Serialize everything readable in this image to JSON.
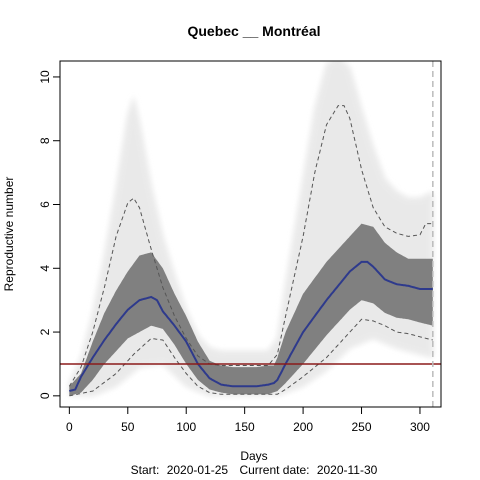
{
  "chart_data": {
    "type": "area",
    "title": "Quebec __ Montréal",
    "xlabel": "Days",
    "ylabel": "Reproductive number",
    "xlim": [
      -8,
      318
    ],
    "ylim": [
      -0.35,
      10.5
    ],
    "x_ticks": [
      0,
      50,
      100,
      150,
      200,
      250,
      300
    ],
    "y_ticks": [
      0,
      2,
      4,
      6,
      8,
      10
    ],
    "start_label": "Start:",
    "start_date": "2020-01-25",
    "current_label": "Current date:",
    "current_date": "2020-11-30",
    "reference_line": {
      "y": 1,
      "color": "#8b1a1a"
    },
    "current_day_marker": {
      "x": 311,
      "color": "#bbbbbb"
    },
    "colors": {
      "median": "#2e3a8c",
      "band_core": "#808080",
      "band_cloud": "#e6e6e6",
      "band_haze": "#f3f3f3",
      "quantile": "#555555"
    },
    "series": [
      {
        "role": "median",
        "x": [
          0,
          5,
          10,
          20,
          30,
          40,
          50,
          60,
          70,
          75,
          80,
          90,
          100,
          110,
          120,
          130,
          140,
          150,
          160,
          170,
          175,
          178,
          185,
          200,
          220,
          240,
          250,
          255,
          260,
          270,
          280,
          290,
          300,
          311
        ],
        "y": [
          0.15,
          0.2,
          0.6,
          1.2,
          1.75,
          2.25,
          2.7,
          3.0,
          3.1,
          3.0,
          2.65,
          2.2,
          1.7,
          1.0,
          0.55,
          0.35,
          0.3,
          0.3,
          0.3,
          0.35,
          0.4,
          0.5,
          1.0,
          2.0,
          3.0,
          3.9,
          4.2,
          4.2,
          4.05,
          3.65,
          3.5,
          3.45,
          3.35,
          3.35
        ]
      },
      {
        "role": "upper-quantile",
        "x": [
          0,
          10,
          20,
          30,
          40,
          50,
          55,
          60,
          70,
          80,
          90,
          100,
          110,
          120,
          130,
          140,
          150,
          160,
          170,
          178,
          185,
          200,
          210,
          220,
          230,
          235,
          240,
          250,
          260,
          270,
          280,
          290,
          300,
          305,
          311
        ],
        "y": [
          0.3,
          0.9,
          2.0,
          3.4,
          5.0,
          6.05,
          6.2,
          5.9,
          4.6,
          3.4,
          2.5,
          1.8,
          1.25,
          1.0,
          0.95,
          0.95,
          0.95,
          0.95,
          0.95,
          1.3,
          2.5,
          5.0,
          7.0,
          8.5,
          9.1,
          9.1,
          8.7,
          7.1,
          5.9,
          5.3,
          5.1,
          5.0,
          5.05,
          5.4,
          5.4
        ]
      },
      {
        "role": "lower-quantile",
        "x": [
          0,
          20,
          40,
          55,
          70,
          80,
          90,
          100,
          110,
          120,
          130,
          140,
          150,
          160,
          170,
          178,
          185,
          200,
          220,
          240,
          250,
          260,
          270,
          280,
          290,
          300,
          311
        ],
        "y": [
          0,
          0.15,
          0.7,
          1.3,
          1.8,
          1.75,
          1.2,
          0.7,
          0.3,
          0.1,
          0.05,
          0.05,
          0.05,
          0.05,
          0.05,
          0.05,
          0.2,
          0.6,
          1.2,
          2.0,
          2.4,
          2.35,
          2.2,
          2.0,
          1.95,
          1.85,
          1.75
        ]
      },
      {
        "role": "band-core-upper",
        "x": [
          0,
          10,
          20,
          30,
          40,
          50,
          60,
          70,
          80,
          90,
          100,
          110,
          120,
          130,
          140,
          150,
          160,
          170,
          175,
          178,
          185,
          200,
          220,
          240,
          250,
          260,
          270,
          280,
          290,
          300,
          311
        ],
        "y": [
          0.3,
          0.7,
          1.7,
          2.6,
          3.3,
          3.9,
          4.4,
          4.5,
          4.0,
          3.2,
          2.5,
          1.7,
          1.1,
          0.95,
          0.9,
          0.9,
          0.9,
          0.95,
          0.95,
          1.2,
          2.0,
          3.2,
          4.2,
          5.0,
          5.4,
          5.3,
          4.8,
          4.5,
          4.3,
          4.3,
          4.3
        ]
      },
      {
        "role": "band-core-lower",
        "x": [
          0,
          10,
          20,
          30,
          40,
          50,
          60,
          70,
          80,
          90,
          100,
          110,
          120,
          130,
          140,
          150,
          160,
          170,
          178,
          185,
          200,
          220,
          240,
          250,
          260,
          270,
          280,
          290,
          300,
          311
        ],
        "y": [
          0,
          0.1,
          0.5,
          1.0,
          1.4,
          1.8,
          2.0,
          2.2,
          2.1,
          1.6,
          1.0,
          0.5,
          0.2,
          0.1,
          0.05,
          0.05,
          0.05,
          0.05,
          0.15,
          0.4,
          1.0,
          1.9,
          2.7,
          3.0,
          2.9,
          2.6,
          2.45,
          2.4,
          2.3,
          2.2
        ]
      },
      {
        "role": "band-cloud-upper",
        "x": [
          0,
          10,
          20,
          30,
          40,
          50,
          55,
          60,
          70,
          80,
          90,
          100,
          110,
          120,
          130,
          140,
          150,
          160,
          170,
          178,
          185,
          200,
          210,
          220,
          230,
          240,
          250,
          260,
          270,
          280,
          290,
          300,
          311
        ],
        "y": [
          0.4,
          1.2,
          2.6,
          4.4,
          6.5,
          8.8,
          9.4,
          8.6,
          6.6,
          5.0,
          3.8,
          2.7,
          1.9,
          1.5,
          1.4,
          1.4,
          1.4,
          1.4,
          1.4,
          1.8,
          3.5,
          6.8,
          9.0,
          10.4,
          10.6,
          10.3,
          9.0,
          7.8,
          6.8,
          6.4,
          6.2,
          6.2,
          6.4
        ]
      },
      {
        "role": "band-cloud-lower",
        "x": [
          0,
          20,
          40,
          60,
          80,
          100,
          120,
          140,
          160,
          178,
          200,
          220,
          240,
          260,
          280,
          300,
          311
        ],
        "y": [
          0,
          0,
          0.3,
          0.9,
          1.0,
          0.3,
          0,
          0,
          0,
          0,
          0.3,
          0.8,
          1.5,
          1.8,
          1.5,
          1.3,
          1.2
        ]
      }
    ]
  }
}
